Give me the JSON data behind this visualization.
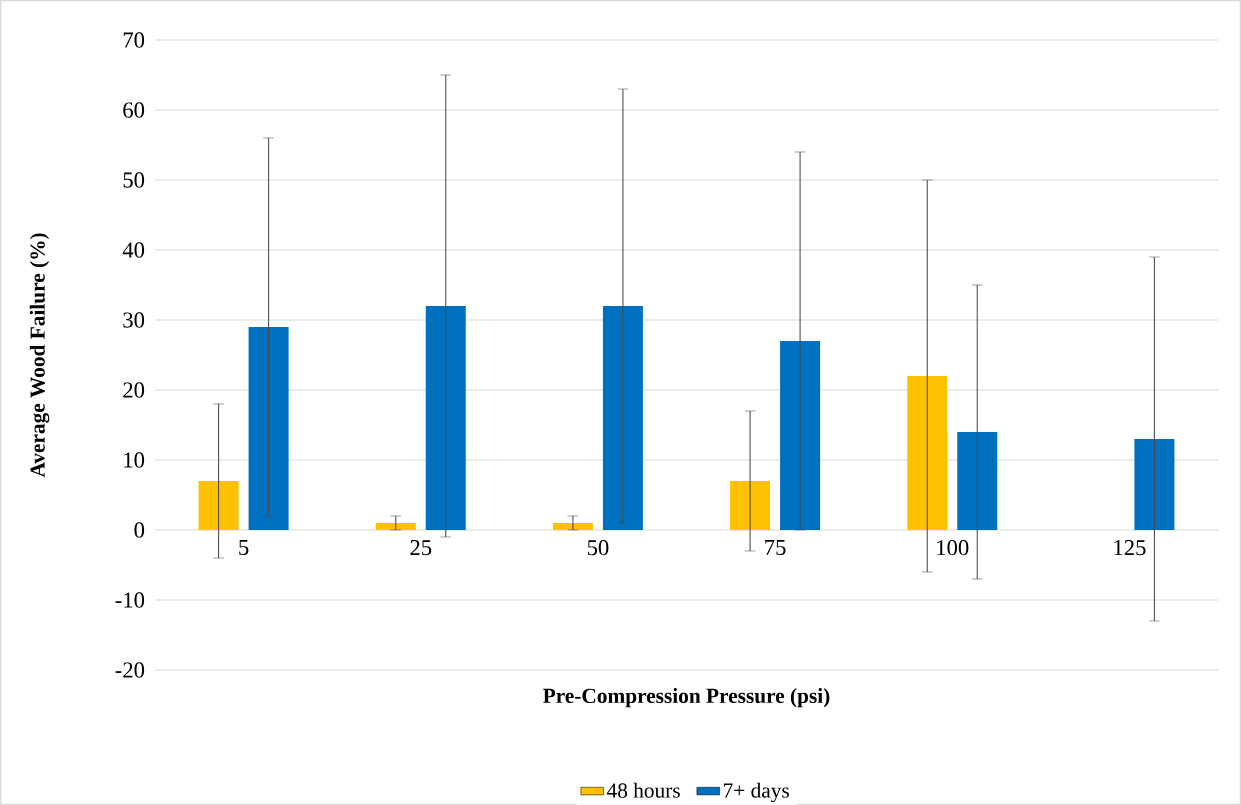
{
  "chart_data": {
    "type": "bar",
    "xlabel": "Pre-Compression Pressure (psi)",
    "ylabel": "Average Wood Failure (%)",
    "categories": [
      "5",
      "25",
      "50",
      "75",
      "100",
      "125"
    ],
    "series": [
      {
        "name": "48 hours",
        "color": "#ffc000",
        "values": [
          7,
          1,
          1,
          7,
          22,
          null
        ],
        "errors": [
          11,
          1,
          1,
          10,
          28,
          null
        ]
      },
      {
        "name": "7+ days",
        "color": "#0070c0",
        "values": [
          29,
          32,
          32,
          27,
          14,
          13
        ],
        "errors": [
          27,
          33,
          31,
          27,
          21,
          26
        ]
      }
    ],
    "ylim": [
      -20,
      70
    ],
    "yticks": [
      -20,
      -10,
      0,
      10,
      20,
      30,
      40,
      50,
      60,
      70
    ],
    "grid": "y",
    "legend": "bottom"
  }
}
